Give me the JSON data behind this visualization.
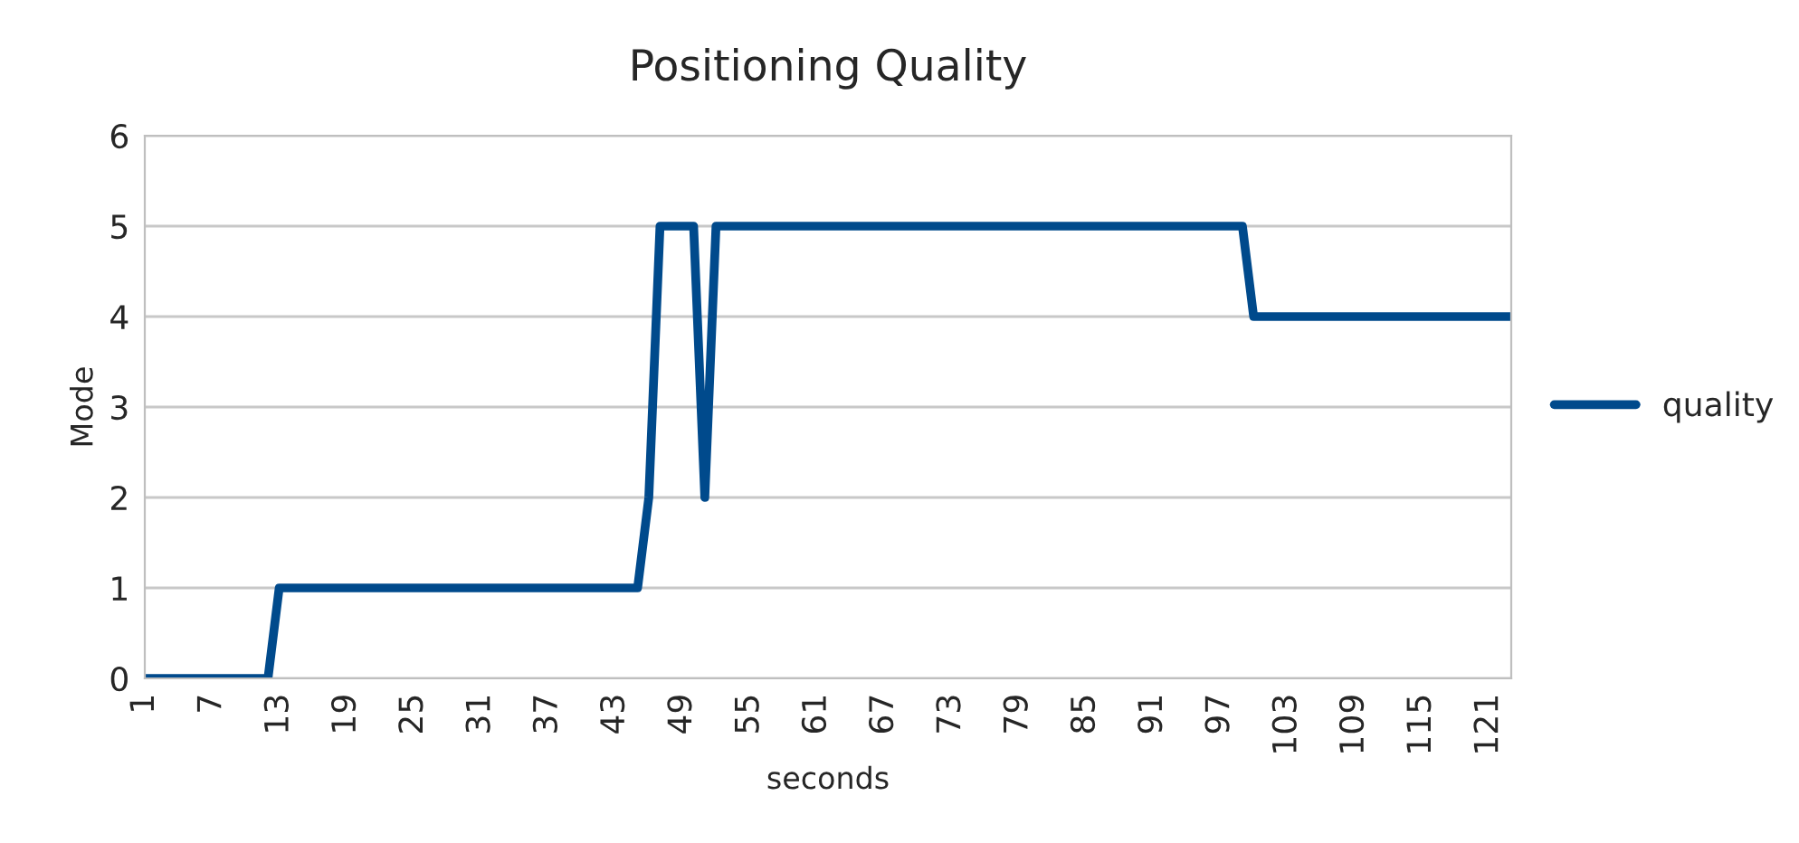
{
  "chart_data": {
    "type": "line",
    "title": "Positioning Quality",
    "xlabel": "seconds",
    "ylabel": "Mode",
    "categories": [
      "1",
      null,
      null,
      null,
      null,
      null,
      "7",
      null,
      null,
      null,
      null,
      null,
      "13",
      null,
      null,
      null,
      null,
      null,
      "19",
      null,
      null,
      null,
      null,
      null,
      "25",
      null,
      null,
      null,
      null,
      null,
      "31",
      null,
      null,
      null,
      null,
      null,
      "37",
      null,
      null,
      null,
      null,
      null,
      "43",
      null,
      null,
      null,
      null,
      null,
      "49",
      null,
      null,
      null,
      null,
      null,
      "55",
      null,
      null,
      null,
      null,
      null,
      "61",
      null,
      null,
      null,
      null,
      null,
      "67",
      null,
      null,
      null,
      null,
      null,
      "73",
      null,
      null,
      null,
      null,
      null,
      "79",
      null,
      null,
      null,
      null,
      null,
      "85",
      null,
      null,
      null,
      null,
      null,
      "91",
      null,
      null,
      null,
      null,
      null,
      "97",
      null,
      null,
      null,
      null,
      null,
      "103",
      null,
      null,
      null,
      null,
      null,
      "109",
      null,
      null,
      null,
      null,
      null,
      "115",
      null,
      null,
      null,
      null,
      null,
      "121",
      null,
      null
    ],
    "series": [
      {
        "name": "quality",
        "color": "#004a8c",
        "values": [
          0,
          0,
          0,
          0,
          0,
          0,
          0,
          0,
          0,
          0,
          0,
          0,
          1,
          1,
          1,
          1,
          1,
          1,
          1,
          1,
          1,
          1,
          1,
          1,
          1,
          1,
          1,
          1,
          1,
          1,
          1,
          1,
          1,
          1,
          1,
          1,
          1,
          1,
          1,
          1,
          1,
          1,
          1,
          1,
          1,
          2,
          5,
          5,
          5,
          5,
          2,
          5,
          5,
          5,
          5,
          5,
          5,
          5,
          5,
          5,
          5,
          5,
          5,
          5,
          5,
          5,
          5,
          5,
          5,
          5,
          5,
          5,
          5,
          5,
          5,
          5,
          5,
          5,
          5,
          5,
          5,
          5,
          5,
          5,
          5,
          5,
          5,
          5,
          5,
          5,
          5,
          5,
          5,
          5,
          5,
          5,
          5,
          5,
          5,
          4,
          4,
          4,
          4,
          4,
          4,
          4,
          4,
          4,
          4,
          4,
          4,
          4,
          4,
          4,
          4,
          4,
          4,
          4,
          4,
          4,
          4,
          4,
          4
        ]
      }
    ],
    "ylim": [
      0,
      6
    ],
    "yticks": [
      0,
      1,
      2,
      3,
      4,
      5,
      6
    ],
    "grid": "y",
    "legend": "right",
    "marker": "none",
    "line_style": "solid"
  }
}
